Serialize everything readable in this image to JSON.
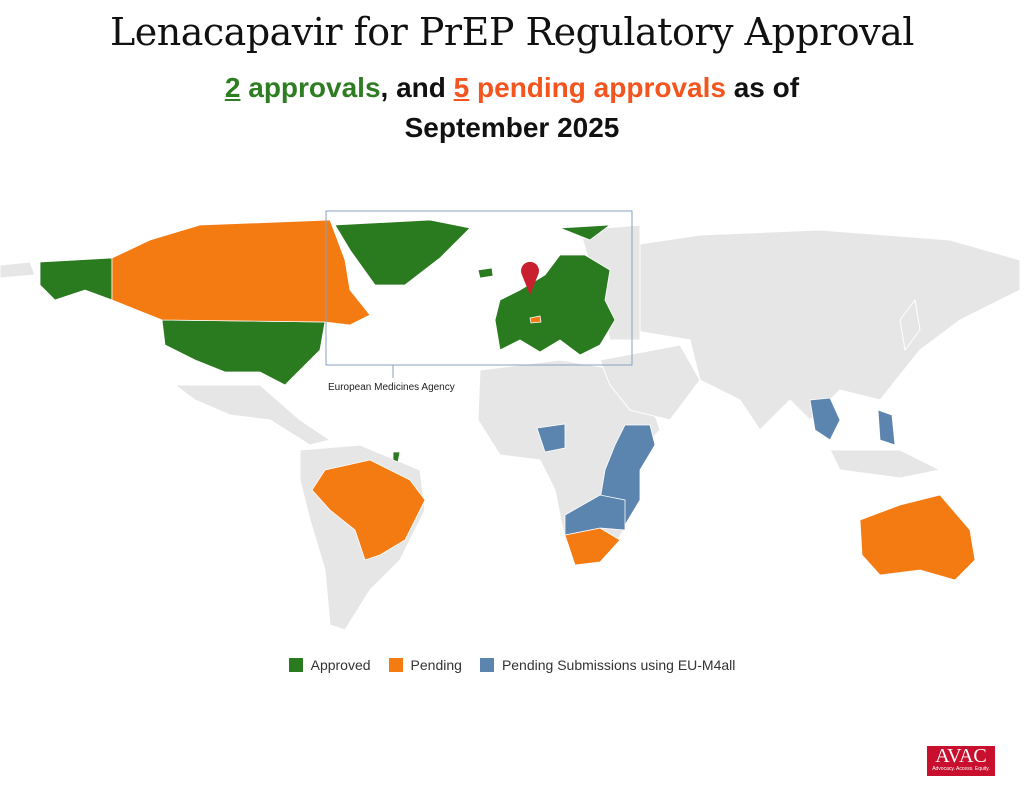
{
  "title": "Lenacapavir for PrEP Regulatory Approval",
  "subtitle": {
    "approved_count": "2",
    "approved_text": "approvals",
    "mid_text": ", and",
    "pending_count": "5",
    "pending_text": "pending approvals",
    "end_text": "as of",
    "date": "September 2025"
  },
  "map": {
    "inset_label": "European Medicines Agency",
    "marker_icon": "map-pin-icon",
    "marker_color": "#c8202f"
  },
  "legend": [
    {
      "label": "Approved",
      "color": "#2a7a1f"
    },
    {
      "label": "Pending",
      "color": "#f47a12"
    },
    {
      "label": "Pending Submissions using EU-M4all",
      "color": "#5b84ae"
    }
  ],
  "colors": {
    "base": "#e6e6e6"
  },
  "logo": {
    "name": "AVAC",
    "tagline": "Advocacy. Access. Equity."
  }
}
